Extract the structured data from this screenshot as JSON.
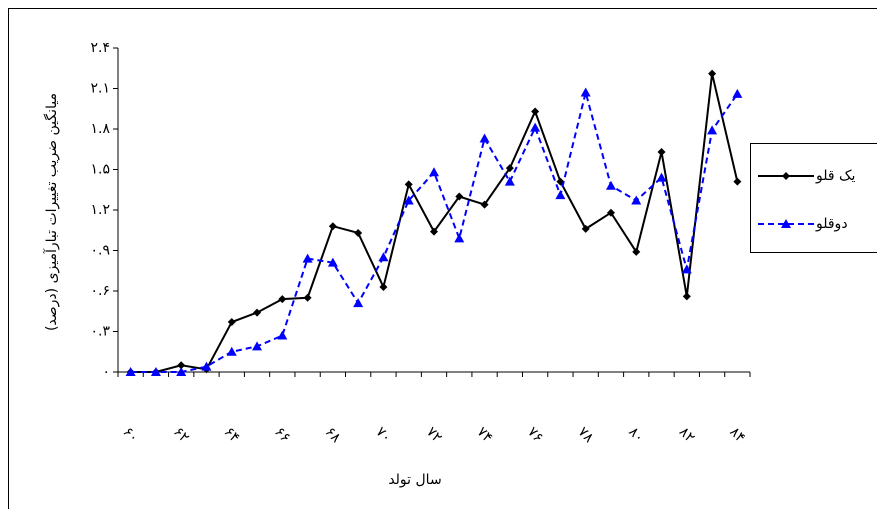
{
  "chart_data": {
    "type": "line",
    "y_axis_title": "میانگین ضریب تغییرات تبارآمیزی (درصد)",
    "x_axis_title": "سال تولد",
    "categories": [
      "۶۰",
      null,
      "۶۲",
      null,
      "۶۴",
      null,
      "۶۶",
      null,
      "۶۸",
      null,
      "۷۰",
      null,
      "۷۲",
      null,
      "۷۴",
      null,
      "۷۶",
      null,
      "۷۸",
      null,
      "۸۰",
      null,
      "۸۲",
      null,
      "۸۴"
    ],
    "series": [
      {
        "name": "یک قلو",
        "color": "#000000",
        "marker": "diamond",
        "dashed": false,
        "values": [
          0,
          0,
          0.05,
          0.02,
          0.37,
          0.44,
          0.54,
          0.55,
          1.08,
          1.03,
          0.63,
          1.39,
          1.04,
          1.3,
          1.24,
          1.51,
          1.93,
          1.41,
          1.06,
          1.18,
          0.89,
          1.63,
          0.56,
          2.21,
          1.41
        ]
      },
      {
        "name": "دوقلو",
        "color": "#0000ff",
        "marker": "triangle",
        "dashed": true,
        "values": [
          0,
          0,
          0,
          0.04,
          0.15,
          0.19,
          0.27,
          0.84,
          0.81,
          0.51,
          0.85,
          1.27,
          1.48,
          0.99,
          1.73,
          1.41,
          1.81,
          1.31,
          2.07,
          1.38,
          1.27,
          1.44,
          0.76,
          1.79,
          2.06
        ]
      }
    ],
    "ylim": [
      0,
      2.4
    ],
    "yticks": [
      {
        "value": 0,
        "label": "۰"
      },
      {
        "value": 0.3,
        "label": "۰.۳"
      },
      {
        "value": 0.6,
        "label": "۰.۶"
      },
      {
        "value": 0.9,
        "label": "۰.۹"
      },
      {
        "value": 1.2,
        "label": "۱.۲"
      },
      {
        "value": 1.5,
        "label": "۱.۵"
      },
      {
        "value": 1.8,
        "label": "۱.۸"
      },
      {
        "value": 2.1,
        "label": "۲.۱"
      },
      {
        "value": 2.4,
        "label": "۲.۴"
      }
    ],
    "grid": false,
    "legend": "right"
  }
}
